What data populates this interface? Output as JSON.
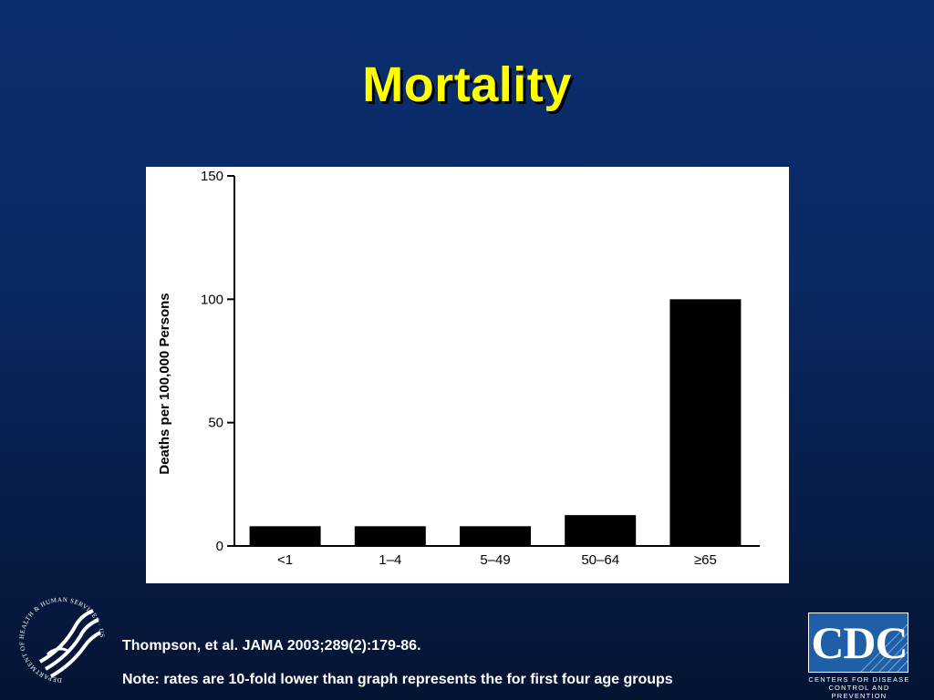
{
  "slide": {
    "title": "Mortality",
    "citation": "Thompson, et al. JAMA 2003;289(2):179-86.",
    "note": "Note: rates are 10-fold lower than graph represents the for first four age groups"
  },
  "logos": {
    "hhs": {
      "icon": "hhs-eagle-seal-icon",
      "text": "DEPARTMENT OF HEALTH & HUMAN SERVICES · USA"
    },
    "cdc": {
      "icon": "cdc-logo-icon",
      "text": "CDC",
      "subtitle_line1": "Centers for Disease",
      "subtitle_line2": "Control and Prevention"
    }
  },
  "colors": {
    "background": "#0a2a66",
    "title": "#ffff00",
    "bar": "#000000",
    "panel": "#ffffff",
    "cdc_box": "#1f5fa8"
  },
  "chart_data": {
    "type": "bar",
    "categories": [
      "<1",
      "1–4",
      "5–49",
      "50–64",
      "≥65"
    ],
    "values": [
      8,
      8,
      8,
      12.5,
      100
    ],
    "title": "",
    "xlabel": "",
    "ylabel": "Deaths per 100,000 Persons",
    "ylim": [
      0,
      150
    ],
    "yticks": [
      0,
      50,
      100,
      150
    ],
    "grid": false,
    "legend": "none"
  }
}
